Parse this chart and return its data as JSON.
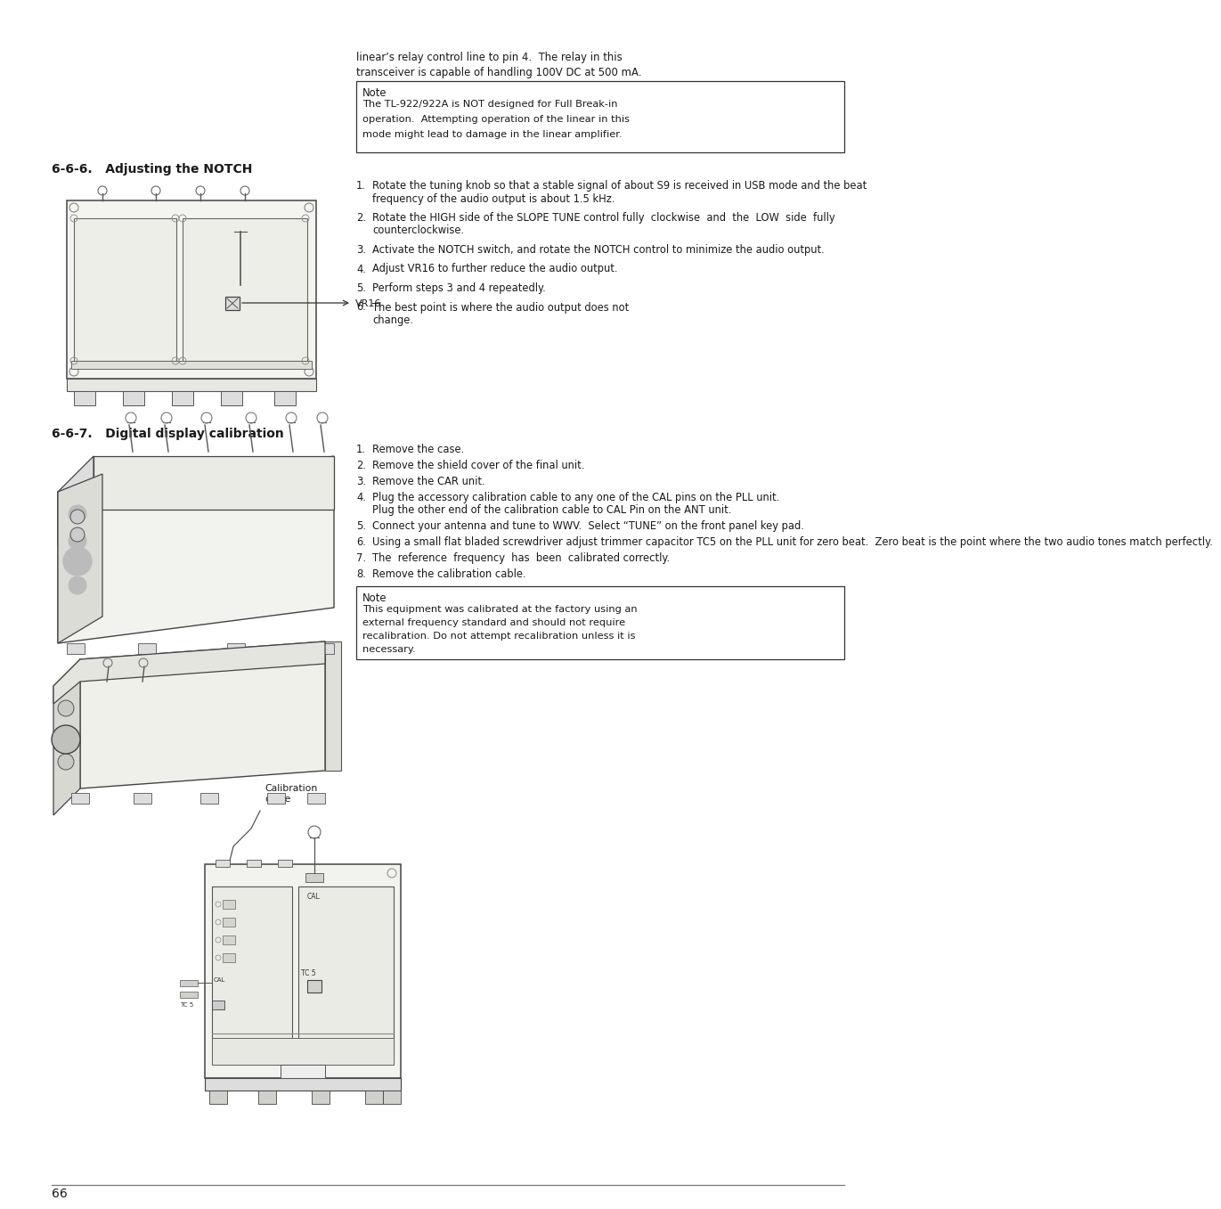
{
  "bg_color": "#ffffff",
  "text_color": "#222222",
  "page_number": "66",
  "top_right_line1": "linear’s relay control line to pin 4.  The relay in this",
  "top_right_line2": "transceiver is capable of handling 100V DC at 500 mA.",
  "note1_title": "Note",
  "note1_body": [
    "The TL-922/922A is NOT designed for Full Break-in",
    "operation.  Attempting operation of the linear in this",
    "mode might lead to damage in the linear amplifier."
  ],
  "sec1_title": "6-6-6.   Adjusting the NOTCH",
  "sec2_title": "6-6-7.   Digital display calibration",
  "items1": [
    [
      "1.",
      "Rotate the tuning knob so that a stable signal of about S9 is received in USB mode and the beat\nfrequency of the audio output is about 1.5 kHz."
    ],
    [
      "2.",
      "Rotate the HIGH side of the SLOPE TUNE control fully  clockwise  and  the  LOW  side  fully\ncounterclockwise."
    ],
    [
      "3.",
      "Activate the NOTCH switch, and rotate the NOTCH control to minimize the audio output."
    ],
    [
      "4.",
      "Adjust VR16 to further reduce the audio output."
    ],
    [
      "5.",
      "Perform steps 3 and 4 repeatedly."
    ],
    [
      "6.",
      "The best point is where the audio output does not\nchange."
    ]
  ],
  "items2": [
    [
      "1.",
      "Remove the case."
    ],
    [
      "2.",
      "Remove the shield cover of the final unit."
    ],
    [
      "3.",
      "Remove the CAR unit."
    ],
    [
      "4.",
      "Plug the accessory calibration cable to any one of the CAL pins on the PLL unit.\nPlug the other end of the calibration cable to CAL Pin on the ANT unit."
    ],
    [
      "5.",
      "Connect your antenna and tune to WWV.  Select “TUNE” on the front panel key pad."
    ],
    [
      "6.",
      "Using a small flat bladed screwdriver adjust trimmer capacitor TC5 on the PLL unit for zero beat.  Zero beat is the point where the two audio tones match perfectly."
    ],
    [
      "7.",
      "The  reference  frequency  has  been  calibrated correctly."
    ],
    [
      "8.",
      "Remove the calibration cable."
    ]
  ],
  "note2_title": "Note",
  "note2_body": [
    "This equipment was calibrated at the factory using an",
    "external frequency standard and should not require",
    "recalibration. Do not attempt recalibration unless it is",
    "necessary."
  ],
  "cal_cable_label": "Calibration\ncable"
}
